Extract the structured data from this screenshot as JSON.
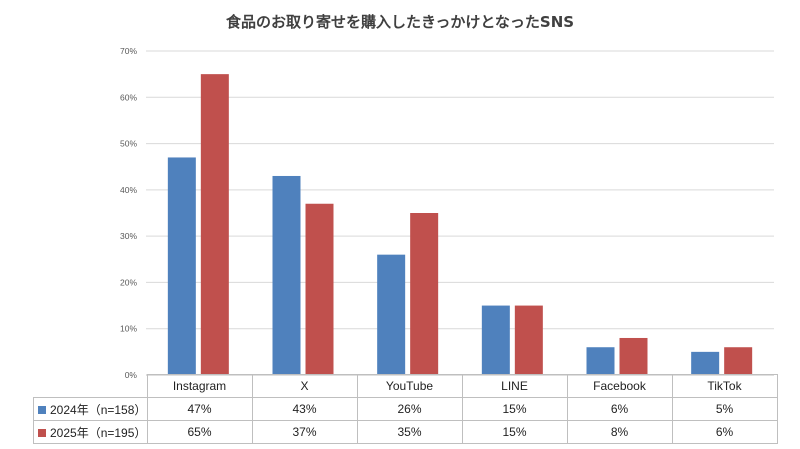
{
  "chart_data": {
    "type": "bar",
    "title": "食品のお取り寄せを購入したきっかけとなったSNS",
    "categories": [
      "Instagram",
      "X",
      "YouTube",
      "LINE",
      "Facebook",
      "TikTok"
    ],
    "series": [
      {
        "name": "2024年（n=158）",
        "values": [
          47,
          43,
          26,
          15,
          6,
          5
        ],
        "labels": [
          "47%",
          "43%",
          "26%",
          "15%",
          "6%",
          "5%"
        ],
        "color": "#4f81bd"
      },
      {
        "name": "2025年（n=195）",
        "values": [
          65,
          37,
          35,
          15,
          8,
          6
        ],
        "labels": [
          "65%",
          "37%",
          "35%",
          "15%",
          "8%",
          "6%"
        ],
        "color": "#c0504d"
      }
    ],
    "ylim": [
      0,
      70
    ],
    "yticks": [
      "0%",
      "10%",
      "20%",
      "30%",
      "40%",
      "50%",
      "60%",
      "70%"
    ],
    "grid": true,
    "legend": "data-table"
  }
}
